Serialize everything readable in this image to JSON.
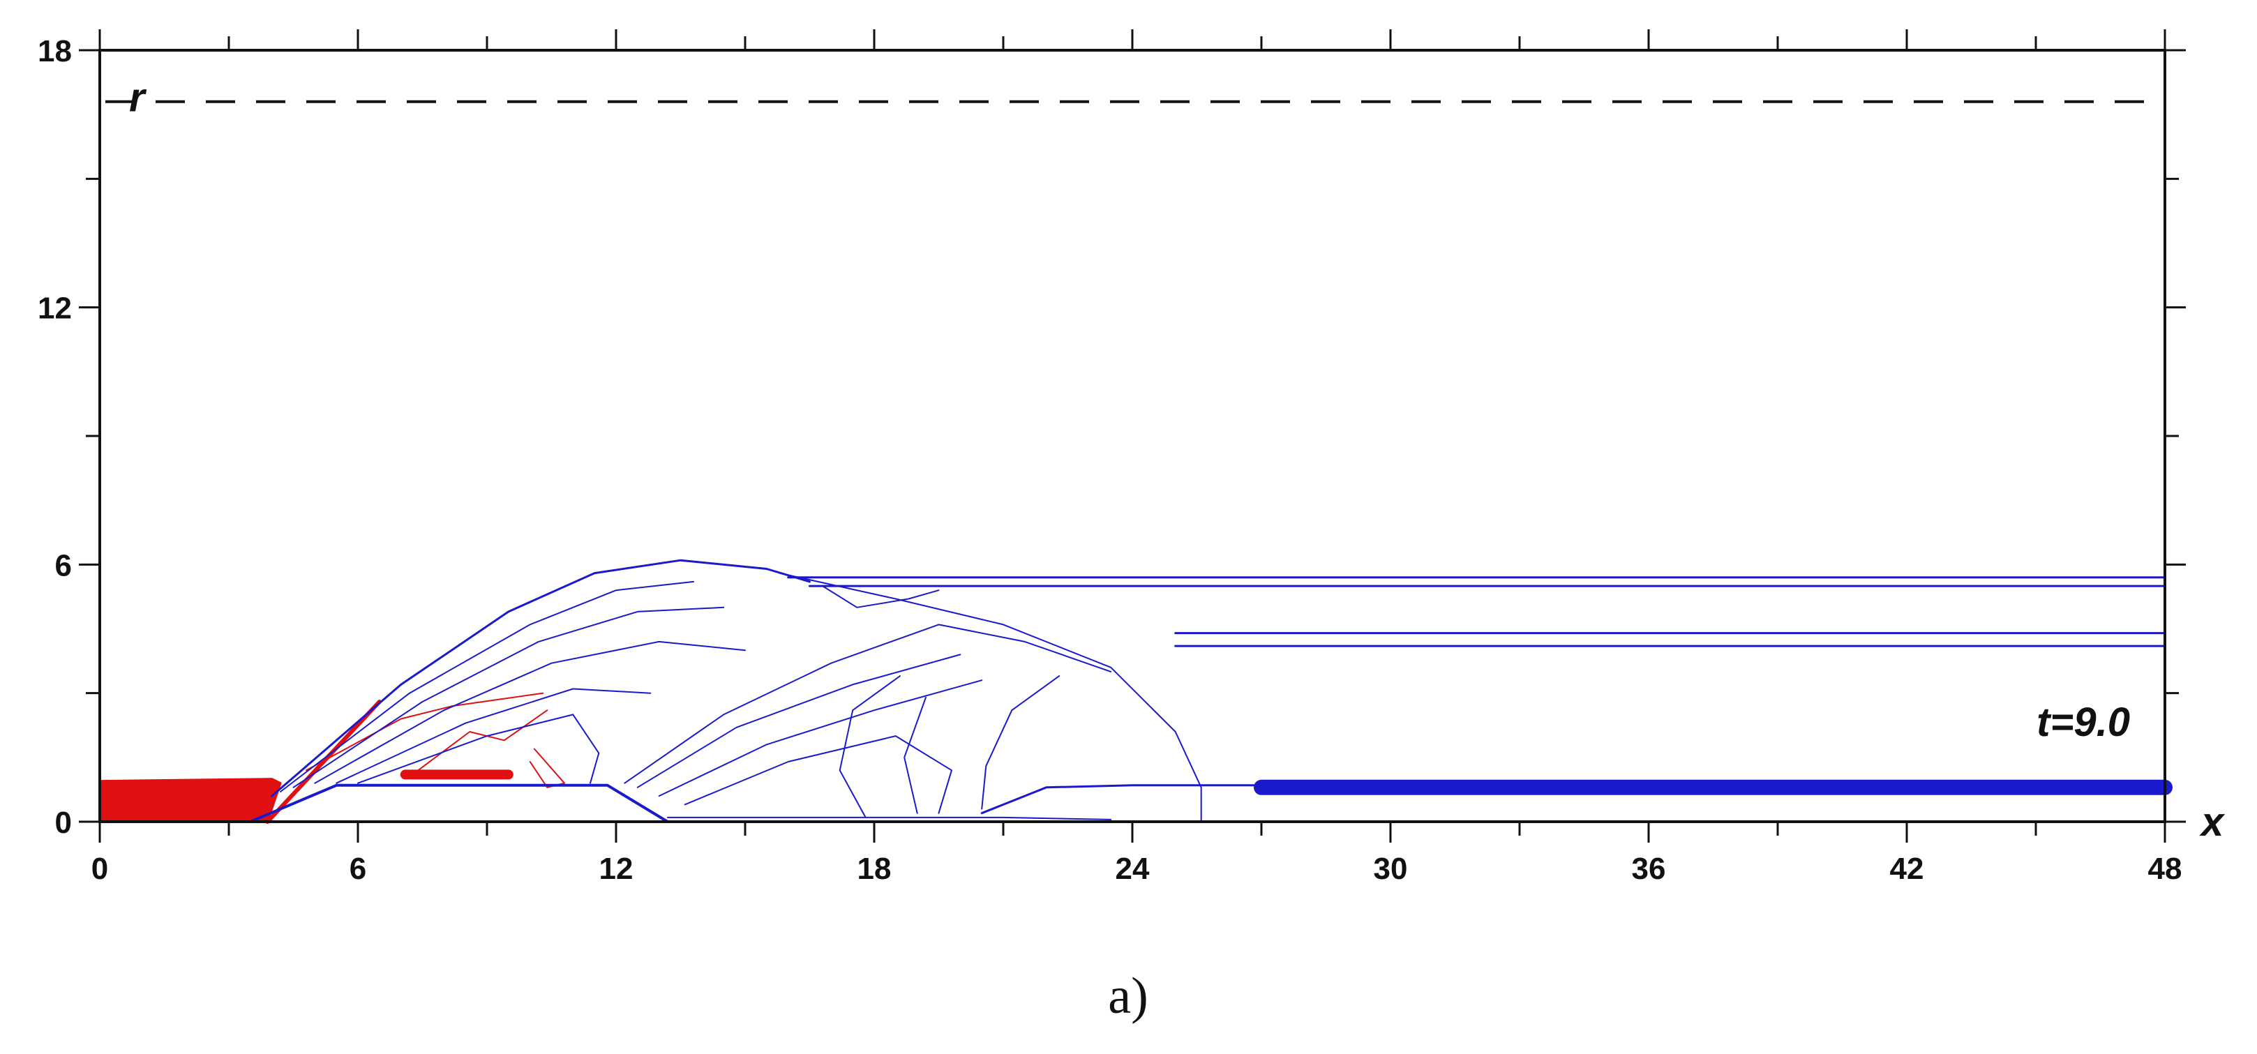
{
  "chart_data": {
    "type": "contour",
    "xlabel": "x",
    "ylabel": "r",
    "xlim": [
      0,
      48
    ],
    "ylim": [
      0,
      18
    ],
    "x_ticks": [
      0,
      6,
      12,
      18,
      24,
      30,
      36,
      42,
      48
    ],
    "y_ticks": [
      0,
      6,
      12,
      18
    ],
    "x_minor_step": 3,
    "y_minor_step": 3,
    "annotation": "t=9.0",
    "caption": "a)",
    "dashed_boundary_r": 16.8,
    "colors": {
      "hot": "#e01010",
      "cool": "#1a1acc",
      "frame": "#111111"
    },
    "hot_contours": [
      {
        "name": "jet-core",
        "points": [
          [
            0,
            0.95
          ],
          [
            4,
            1.0
          ],
          [
            4.2,
            0.9
          ],
          [
            3.9,
            0
          ],
          [
            0,
            0
          ]
        ],
        "fill": true
      },
      {
        "name": "wave-front",
        "points": [
          [
            3.9,
            0
          ],
          [
            6.5,
            2.8
          ]
        ],
        "weight": 6
      },
      {
        "name": "inner-1",
        "points": [
          [
            4.8,
            1.2
          ],
          [
            7.0,
            2.4
          ],
          [
            8.2,
            2.7
          ],
          [
            10.3,
            3.0
          ]
        ],
        "weight": 2
      },
      {
        "name": "inner-2",
        "points": [
          [
            7.4,
            1.2
          ],
          [
            8.6,
            2.1
          ],
          [
            9.4,
            1.9
          ],
          [
            10.4,
            2.6
          ]
        ],
        "weight": 2
      },
      {
        "name": "streak",
        "points": [
          [
            7.1,
            1.1
          ],
          [
            9.5,
            1.1
          ]
        ],
        "weight": 14
      },
      {
        "name": "loop",
        "points": [
          [
            10.1,
            1.7
          ],
          [
            10.8,
            0.9
          ],
          [
            10.4,
            0.8
          ],
          [
            10.0,
            1.4
          ]
        ],
        "weight": 2
      }
    ],
    "cool_contours": [
      {
        "name": "shock-outer",
        "points": [
          [
            4.0,
            0.6
          ],
          [
            7.0,
            3.2
          ],
          [
            9.5,
            4.9
          ],
          [
            11.5,
            5.8
          ],
          [
            13.5,
            6.1
          ],
          [
            15.5,
            5.9
          ],
          [
            16.5,
            5.6
          ]
        ],
        "weight": 3
      },
      {
        "name": "fan-1",
        "points": [
          [
            4.2,
            0.7
          ],
          [
            7.2,
            3.0
          ],
          [
            10.0,
            4.6
          ],
          [
            12.0,
            5.4
          ],
          [
            13.8,
            5.6
          ]
        ],
        "weight": 2
      },
      {
        "name": "fan-2",
        "points": [
          [
            4.5,
            0.8
          ],
          [
            7.5,
            2.8
          ],
          [
            10.2,
            4.2
          ],
          [
            12.5,
            4.9
          ],
          [
            14.5,
            5.0
          ]
        ],
        "weight": 2
      },
      {
        "name": "fan-3",
        "points": [
          [
            5.0,
            0.9
          ],
          [
            8.0,
            2.6
          ],
          [
            10.5,
            3.7
          ],
          [
            13.0,
            4.2
          ],
          [
            15.0,
            4.0
          ]
        ],
        "weight": 2
      },
      {
        "name": "fan-4",
        "points": [
          [
            5.5,
            0.9
          ],
          [
            8.5,
            2.3
          ],
          [
            11.0,
            3.1
          ],
          [
            12.8,
            3.0
          ]
        ],
        "weight": 2
      },
      {
        "name": "fan-5",
        "points": [
          [
            6.0,
            0.9
          ],
          [
            9.0,
            2.0
          ],
          [
            11.0,
            2.5
          ],
          [
            11.6,
            1.6
          ],
          [
            11.4,
            0.9
          ]
        ],
        "weight": 2
      },
      {
        "name": "nozzle-edge",
        "points": [
          [
            3.5,
            0
          ],
          [
            5.5,
            0.85
          ],
          [
            11.8,
            0.85
          ],
          [
            13.2,
            0
          ]
        ],
        "weight": 4
      },
      {
        "name": "mid-shock",
        "points": [
          [
            12.2,
            0.9
          ],
          [
            14.5,
            2.5
          ],
          [
            17.0,
            3.7
          ],
          [
            19.5,
            4.6
          ],
          [
            21.5,
            4.2
          ],
          [
            23.5,
            3.5
          ]
        ],
        "weight": 2
      },
      {
        "name": "mid-fan-1",
        "points": [
          [
            12.5,
            0.8
          ],
          [
            14.8,
            2.2
          ],
          [
            17.5,
            3.2
          ],
          [
            20.0,
            3.9
          ]
        ],
        "weight": 2
      },
      {
        "name": "mid-fan-2",
        "points": [
          [
            13.0,
            0.6
          ],
          [
            15.5,
            1.8
          ],
          [
            18.0,
            2.6
          ],
          [
            20.5,
            3.3
          ]
        ],
        "weight": 2
      },
      {
        "name": "mid-fan-3",
        "points": [
          [
            13.6,
            0.4
          ],
          [
            16.0,
            1.4
          ],
          [
            18.5,
            2.0
          ],
          [
            19.8,
            1.2
          ],
          [
            19.5,
            0.2
          ]
        ],
        "weight": 2
      },
      {
        "name": "bubble",
        "points": [
          [
            15.8,
            5.8
          ],
          [
            18.5,
            5.2
          ],
          [
            21.0,
            4.6
          ],
          [
            23.5,
            3.6
          ],
          [
            25.0,
            2.1
          ],
          [
            25.6,
            0.8
          ],
          [
            25.6,
            0
          ]
        ],
        "weight": 2
      },
      {
        "name": "stem-1",
        "points": [
          [
            17.8,
            0.1
          ],
          [
            17.2,
            1.2
          ],
          [
            17.5,
            2.6
          ],
          [
            18.6,
            3.4
          ]
        ],
        "weight": 2
      },
      {
        "name": "stem-2",
        "points": [
          [
            19.0,
            0.2
          ],
          [
            18.7,
            1.5
          ],
          [
            19.2,
            2.9
          ]
        ],
        "weight": 2
      },
      {
        "name": "stem-3",
        "points": [
          [
            20.5,
            0.3
          ],
          [
            20.6,
            1.3
          ],
          [
            21.2,
            2.6
          ],
          [
            22.3,
            3.4
          ]
        ],
        "weight": 2
      },
      {
        "name": "v-notch",
        "points": [
          [
            16.8,
            5.5
          ],
          [
            17.6,
            5.0
          ],
          [
            18.8,
            5.2
          ],
          [
            19.5,
            5.4
          ]
        ],
        "weight": 2
      },
      {
        "name": "layer-outer-a",
        "points": [
          [
            16.0,
            5.7
          ],
          [
            48,
            5.7
          ]
        ],
        "weight": 3
      },
      {
        "name": "layer-outer-b",
        "points": [
          [
            16.5,
            5.5
          ],
          [
            48,
            5.5
          ]
        ],
        "weight": 3
      },
      {
        "name": "layer-inner-a",
        "points": [
          [
            25.0,
            4.4
          ],
          [
            48,
            4.4
          ]
        ],
        "weight": 3
      },
      {
        "name": "layer-inner-b",
        "points": [
          [
            25.0,
            4.1
          ],
          [
            48,
            4.1
          ]
        ],
        "weight": 3
      },
      {
        "name": "wall-plume",
        "points": [
          [
            20.5,
            0.2
          ],
          [
            22.0,
            0.8
          ],
          [
            24.0,
            0.85
          ],
          [
            26.5,
            0.85
          ],
          [
            48,
            0.85
          ]
        ],
        "weight": 3
      },
      {
        "name": "wall-plume-thick",
        "points": [
          [
            27.0,
            0.8
          ],
          [
            48,
            0.8
          ]
        ],
        "weight": 22
      },
      {
        "name": "floor",
        "points": [
          [
            13.2,
            0.1
          ],
          [
            21.0,
            0.1
          ],
          [
            23.5,
            0.05
          ]
        ],
        "weight": 2
      }
    ]
  }
}
